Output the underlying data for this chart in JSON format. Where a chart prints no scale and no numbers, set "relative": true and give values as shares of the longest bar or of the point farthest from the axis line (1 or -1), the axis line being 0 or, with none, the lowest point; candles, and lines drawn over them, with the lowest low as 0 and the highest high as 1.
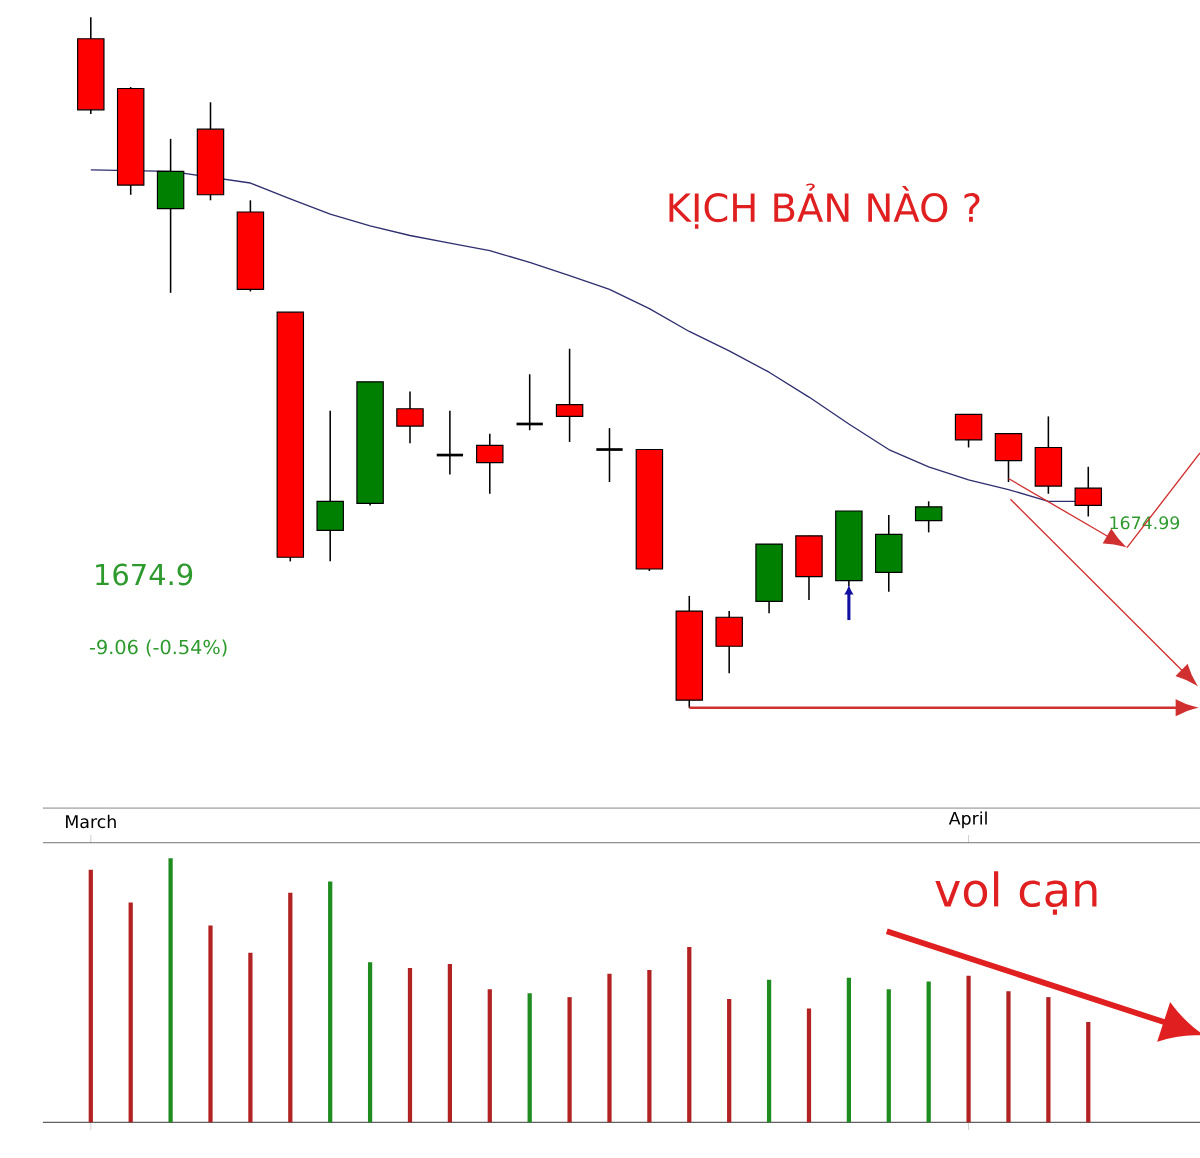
{
  "chart_data": [
    {
      "type": "candlestick",
      "title": "KỊCH BẢN NÀO ?",
      "relative": true,
      "categories": [
        null,
        null,
        null,
        null,
        null,
        null,
        null,
        null,
        null,
        null,
        null,
        null,
        null,
        null,
        null,
        null,
        null,
        null,
        null,
        null,
        null,
        null,
        null,
        null,
        null,
        null
      ],
      "ohlc": [
        [
          0.969,
          1.0,
          0.86,
          0.866
        ],
        [
          0.897,
          0.899,
          0.743,
          0.757
        ],
        [
          0.723,
          0.824,
          0.601,
          0.777
        ],
        [
          0.838,
          0.877,
          0.735,
          0.743
        ],
        [
          0.718,
          0.735,
          0.603,
          0.606
        ],
        [
          0.573,
          0.573,
          0.212,
          0.218
        ],
        [
          0.257,
          0.43,
          0.212,
          0.299
        ],
        [
          0.296,
          0.472,
          0.293,
          0.472
        ],
        [
          0.433,
          0.458,
          0.383,
          0.408
        ],
        [
          0.366,
          0.43,
          0.338,
          0.366
        ],
        [
          0.38,
          0.397,
          0.31,
          0.355
        ],
        [
          0.411,
          0.483,
          0.402,
          0.411
        ],
        [
          0.439,
          0.52,
          0.385,
          0.422
        ],
        [
          0.374,
          0.405,
          0.327,
          0.374
        ],
        [
          0.374,
          0.374,
          0.198,
          0.201
        ],
        [
          0.14,
          0.162,
          0.0,
          0.011
        ],
        [
          0.131,
          0.14,
          0.05,
          0.089
        ],
        [
          0.154,
          0.237,
          0.137,
          0.237
        ],
        [
          0.249,
          0.249,
          0.156,
          0.19
        ],
        [
          0.184,
          0.285,
          0.176,
          0.285
        ],
        [
          0.196,
          0.279,
          0.168,
          0.251
        ],
        [
          0.271,
          0.299,
          0.254,
          0.291
        ],
        [
          0.425,
          0.425,
          0.377,
          0.388
        ],
        [
          0.397,
          0.397,
          0.327,
          0.358
        ],
        [
          0.377,
          0.422,
          0.31,
          0.321
        ],
        [
          0.318,
          0.349,
          0.277,
          0.293
        ]
      ],
      "colors": [
        "#ff0000",
        "#ff0000",
        "#008000",
        "#ff0000",
        "#ff0000",
        "#ff0000",
        "#008000",
        "#008000",
        "#ff0000",
        "#000000",
        "#ff0000",
        "#000000",
        "#ff0000",
        "#000000",
        "#ff0000",
        "#ff0000",
        "#ff0000",
        "#008000",
        "#ff0000",
        "#008000",
        "#008000",
        "#008000",
        "#ff0000",
        "#ff0000",
        "#ff0000",
        "#ff0000"
      ],
      "series": [
        {
          "type": "line",
          "color": "#2f2f6f",
          "values": [
            0.779,
            null,
            0.777,
            null,
            0.76,
            0.737,
            0.715,
            0.698,
            0.684,
            0.673,
            0.662,
            0.645,
            0.626,
            0.606,
            0.578,
            0.545,
            0.517,
            0.486,
            0.45,
            0.411,
            0.374,
            0.349,
            0.33,
            0.316,
            0.299,
            0.299
          ]
        }
      ],
      "annotations": [
        "1674.9",
        "-9.06 (-0.54%)",
        "1674.99"
      ]
    },
    {
      "type": "bar",
      "relative": true,
      "categories": [
        "March",
        null,
        null,
        null,
        null,
        null,
        null,
        null,
        null,
        null,
        null,
        null,
        null,
        null,
        null,
        null,
        null,
        null,
        null,
        null,
        null,
        null,
        "April",
        null,
        null,
        null
      ],
      "values": [
        0.956,
        0.832,
        1.0,
        0.745,
        0.642,
        0.869,
        0.912,
        0.606,
        0.584,
        0.599,
        0.504,
        0.489,
        0.474,
        0.562,
        0.577,
        0.664,
        0.467,
        0.54,
        0.431,
        0.547,
        0.504,
        0.533,
        0.555,
        0.496,
        0.474,
        0.38
      ],
      "colors": [
        "#b22222",
        "#b22222",
        "#1e8c1e",
        "#b22222",
        "#b22222",
        "#b22222",
        "#1e8c1e",
        "#1e8c1e",
        "#b22222",
        "#b22222",
        "#b22222",
        "#1e8c1e",
        "#b22222",
        "#b22222",
        "#b22222",
        "#b22222",
        "#b22222",
        "#1e8c1e",
        "#b22222",
        "#1e8c1e",
        "#1e8c1e",
        "#1e8c1e",
        "#b22222",
        "#b22222",
        "#b22222",
        "#b22222"
      ],
      "annotations": [
        "vol cạn"
      ]
    }
  ]
}
